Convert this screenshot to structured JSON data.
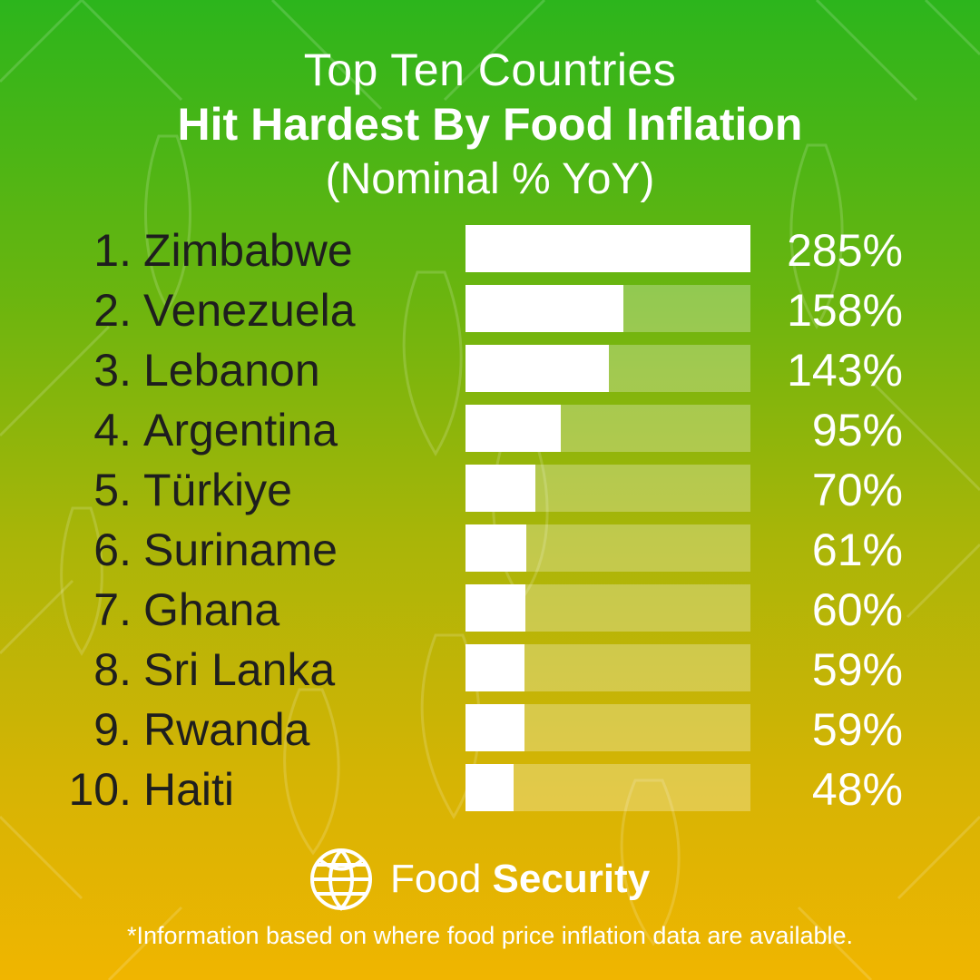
{
  "header": {
    "line1": "Top Ten Countries",
    "line2": "Hit Hardest By Food Inflation",
    "line3": "(Nominal % YoY)"
  },
  "chart_data": {
    "type": "bar",
    "orientation": "horizontal",
    "title": "Top Ten Countries Hit Hardest By Food Inflation (Nominal % YoY)",
    "ranks": [
      "1.",
      "2.",
      "3.",
      "4.",
      "5.",
      "6.",
      "7.",
      "8.",
      "9.",
      "10."
    ],
    "categories": [
      "Zimbabwe",
      "Venezuela",
      "Lebanon",
      "Argentina",
      "Türkiye",
      "Suriname",
      "Ghana",
      "Sri Lanka",
      "Rwanda",
      "Haiti"
    ],
    "values": [
      285,
      158,
      143,
      95,
      70,
      61,
      60,
      59,
      59,
      48
    ],
    "value_labels": [
      "285%",
      "158%",
      "143%",
      "95%",
      "70%",
      "61%",
      "60%",
      "59%",
      "59%",
      "48%"
    ],
    "xlim": [
      0,
      285
    ],
    "bar_color": "#ffffff",
    "track_color": "rgba(255,255,255,0.28)",
    "grid": false
  },
  "brand": {
    "name_light": "Food",
    "name_bold": "Security",
    "icon": "globe-icon"
  },
  "footnote": "*Information based on where food price inflation data are available.",
  "colors": {
    "gradient_top": "#2cb51c",
    "gradient_bottom": "#f0b500",
    "text_dark": "#1e1e1e",
    "text_light": "#ffffff"
  }
}
